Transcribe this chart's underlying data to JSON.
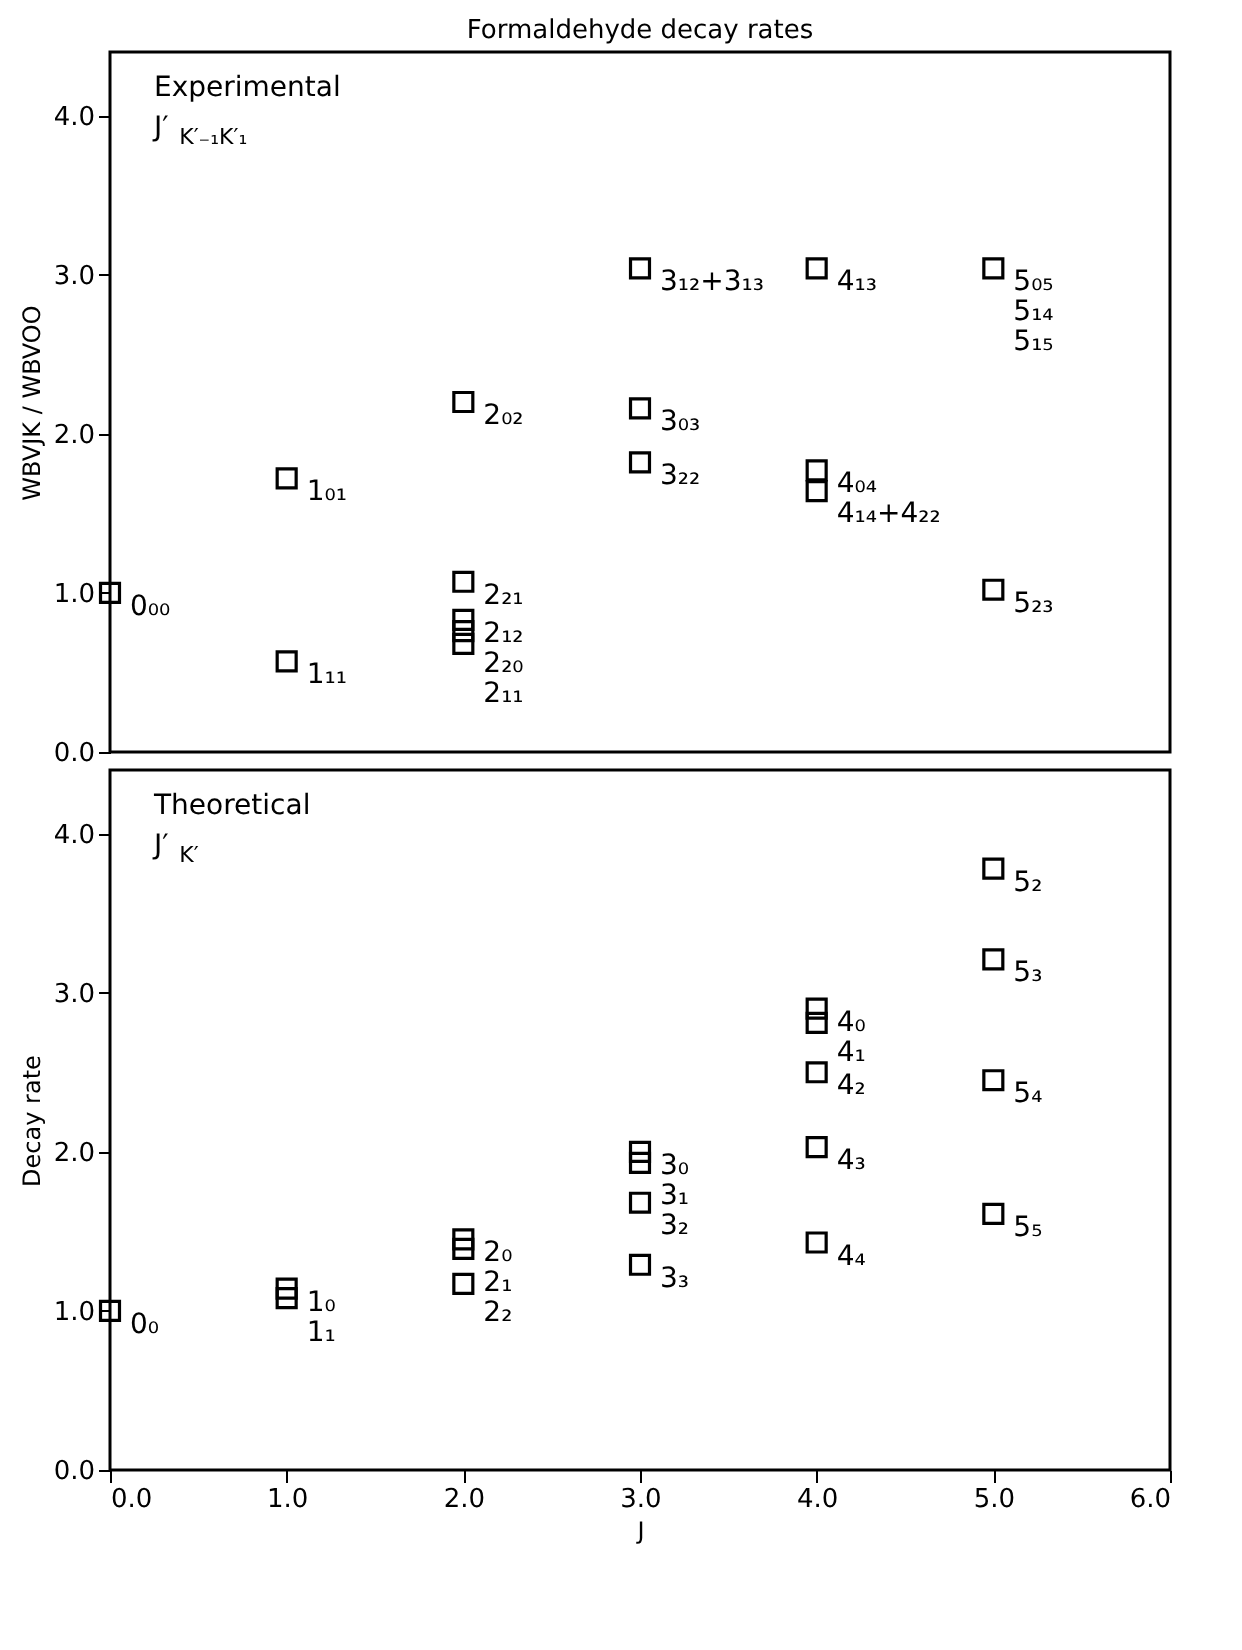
{
  "chart_data": [
    {
      "type": "scatter",
      "title": "Formaldehyde decay rates",
      "ylabel": "WBVJK / WBVOO",
      "marker": "square",
      "grid": false,
      "tick_labels": "y",
      "xlim": [
        0,
        6
      ],
      "ylim": [
        0,
        4.4
      ],
      "yticks": [
        {
          "value": 0,
          "label": "0.0"
        },
        {
          "value": 1,
          "label": "1.0"
        },
        {
          "value": 2,
          "label": "2.0"
        },
        {
          "value": 3,
          "label": "3.0"
        },
        {
          "value": 4,
          "label": "4.0"
        }
      ],
      "series": [
        {
          "color": "#000000",
          "x": [
            0,
            1,
            1,
            2,
            2,
            2,
            2,
            2,
            3,
            3,
            3,
            4,
            4,
            4,
            5,
            5
          ],
          "values": [
            1.0,
            1.72,
            0.57,
            2.2,
            1.07,
            0.83,
            0.76,
            0.68,
            3.04,
            2.16,
            1.82,
            3.04,
            1.77,
            1.64,
            3.04,
            1.02
          ]
        }
      ],
      "annotations": [
        "Experimental",
        "J′$_{K′₋₁K′₁}$",
        {
          "text": "0₀₀",
          "x": 0,
          "y": 1.0
        },
        {
          "text": "1₀₁",
          "x": 1,
          "y": 1.72
        },
        {
          "text": "1₁₁",
          "x": 1,
          "y": 0.57
        },
        {
          "text": "2₀₂",
          "x": 2,
          "y": 2.2
        },
        {
          "text": "2₂₁",
          "x": 2,
          "y": 1.07
        },
        {
          "text": "2₁₂",
          "x": 2,
          "y": 0.83
        },
        {
          "text": "2₂₀",
          "x": 2,
          "y": 0.76
        },
        {
          "text": "2₁₁",
          "x": 2,
          "y": 0.68
        },
        {
          "text": "3₁₂+3₁₃",
          "x": 3,
          "y": 3.04
        },
        {
          "text": "3₀₃",
          "x": 3,
          "y": 2.16
        },
        {
          "text": "3₂₂",
          "x": 3,
          "y": 1.82
        },
        {
          "text": "4₁₃",
          "x": 4,
          "y": 3.04
        },
        {
          "text": "4₀₄",
          "x": 4,
          "y": 1.77
        },
        {
          "text": "4₁₄+4₂₂",
          "x": 4,
          "y": 1.64
        },
        {
          "text": "5₀₅",
          "x": 5,
          "y": 3.04
        },
        {
          "text": "5₁₄",
          "x": 5,
          "y": 3.04
        },
        {
          "text": "5₁₅",
          "x": 5,
          "y": 3.04
        },
        {
          "text": "5₂₃",
          "x": 5,
          "y": 1.02
        }
      ]
    },
    {
      "type": "scatter",
      "xlabel": "J",
      "ylabel": "Decay rate",
      "marker": "square",
      "grid": false,
      "xlim": [
        0,
        6
      ],
      "xticks": [
        {
          "value": 0,
          "label": "0.0"
        },
        {
          "value": 1,
          "label": "1.0"
        },
        {
          "value": 2,
          "label": "2.0"
        },
        {
          "value": 3,
          "label": "3.0"
        },
        {
          "value": 4,
          "label": "4.0"
        },
        {
          "value": 5,
          "label": "5.0"
        },
        {
          "value": 6,
          "label": "6.0"
        }
      ],
      "ylim": [
        0,
        4.4
      ],
      "yticks": [
        {
          "value": 0,
          "label": "0.0"
        },
        {
          "value": 1,
          "label": "1.0"
        },
        {
          "value": 2,
          "label": "2.0"
        },
        {
          "value": 3,
          "label": "3.0"
        },
        {
          "value": 4,
          "label": "4.0"
        }
      ],
      "series": [
        {
          "color": "#000000",
          "x": [
            0,
            1,
            1,
            2,
            2,
            2,
            3,
            3,
            3,
            3,
            4,
            4,
            4,
            4,
            4,
            5,
            5,
            5,
            5
          ],
          "values": [
            1.0,
            1.14,
            1.08,
            1.45,
            1.39,
            1.17,
            2.0,
            1.93,
            1.68,
            1.29,
            2.9,
            2.81,
            2.5,
            2.03,
            1.43,
            3.78,
            3.21,
            2.45,
            1.61
          ]
        }
      ],
      "annotations": [
        "Theoretical",
        "J′$_{K′}$",
        {
          "text": "0₀",
          "x": 0,
          "y": 1.0
        },
        {
          "text": "1₀",
          "x": 1,
          "y": 1.14
        },
        {
          "text": "1₁",
          "x": 1,
          "y": 1.08
        },
        {
          "text": "2₀",
          "x": 2,
          "y": 1.45
        },
        {
          "text": "2₁",
          "x": 2,
          "y": 1.39
        },
        {
          "text": "2₂",
          "x": 2,
          "y": 1.17
        },
        {
          "text": "3₀",
          "x": 3,
          "y": 2.0
        },
        {
          "text": "3₁",
          "x": 3,
          "y": 1.93
        },
        {
          "text": "3₂",
          "x": 3,
          "y": 1.68
        },
        {
          "text": "3₃",
          "x": 3,
          "y": 1.29
        },
        {
          "text": "4₀",
          "x": 4,
          "y": 2.9
        },
        {
          "text": "4₁",
          "x": 4,
          "y": 2.81
        },
        {
          "text": "4₂",
          "x": 4,
          "y": 2.5
        },
        {
          "text": "4₃",
          "x": 4,
          "y": 2.03
        },
        {
          "text": "4₄",
          "x": 4,
          "y": 1.43
        },
        {
          "text": "5₂",
          "x": 5,
          "y": 3.78
        },
        {
          "text": "5₃",
          "x": 5,
          "y": 3.21
        },
        {
          "text": "5₄",
          "x": 5,
          "y": 2.45
        },
        {
          "text": "5₅",
          "x": 5,
          "y": 1.61
        }
      ]
    }
  ]
}
